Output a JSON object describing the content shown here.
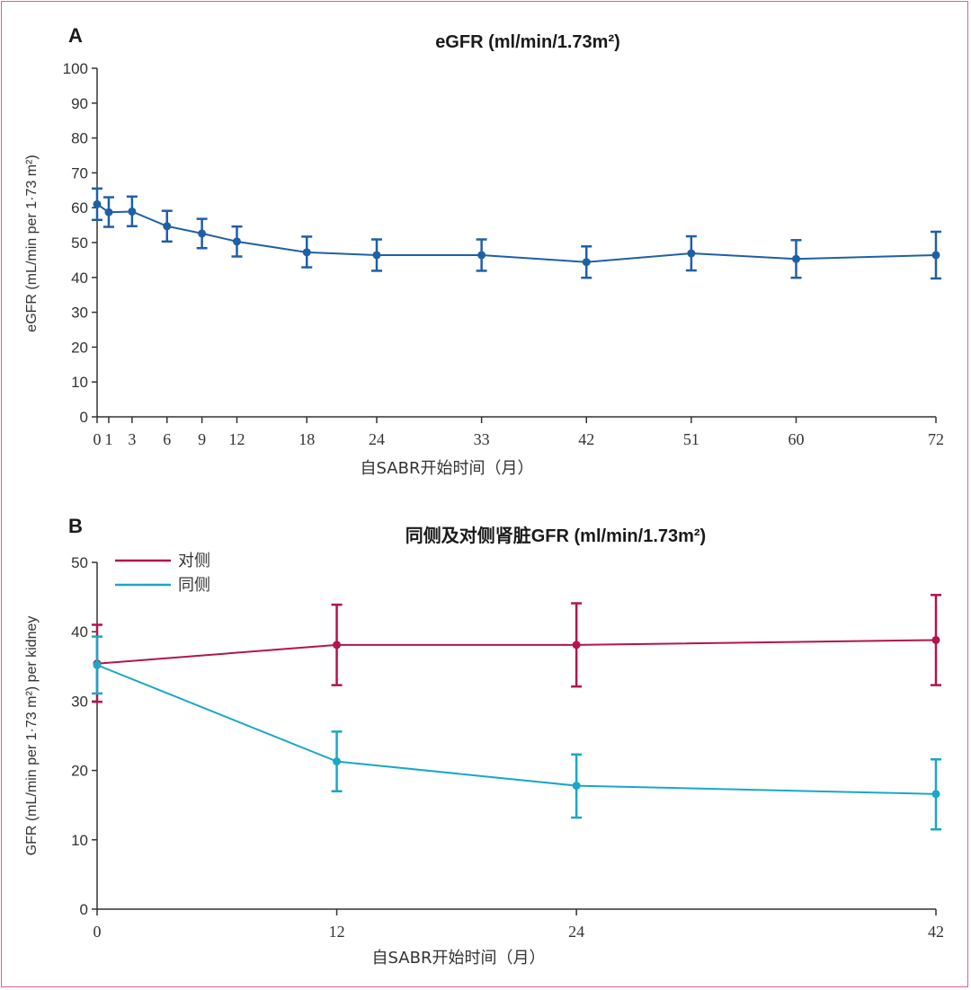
{
  "chart_data": [
    {
      "panel": "A",
      "type": "line",
      "title": "eGFR (ml/min/1.73m²)",
      "xlabel": "自SABR开始时间（月）",
      "ylabel": "eGFR (mL/min per 1·73 m²)",
      "ylim": [
        0,
        100
      ],
      "yticks": [
        0,
        10,
        20,
        30,
        40,
        50,
        60,
        70,
        80,
        90,
        100
      ],
      "xticks": [
        0,
        1,
        3,
        6,
        9,
        12,
        18,
        24,
        33,
        42,
        51,
        60,
        72
      ],
      "xlim": [
        0,
        72
      ],
      "grid": false,
      "colors": {
        "series": "#1f5fa6"
      },
      "series": [
        {
          "name": "",
          "x": [
            0,
            1,
            3,
            6,
            9,
            12,
            18,
            24,
            33,
            42,
            51,
            60,
            72
          ],
          "y": [
            61,
            58.7,
            58.9,
            54.7,
            52.6,
            50.3,
            47.2,
            46.4,
            46.4,
            44.4,
            46.9,
            45.3,
            46.4
          ],
          "err_low": [
            56.5,
            54.5,
            54.7,
            50.3,
            48.4,
            46.0,
            42.9,
            41.9,
            41.9,
            39.9,
            42.0,
            39.9,
            39.7
          ],
          "err_high": [
            65.5,
            63.0,
            63.2,
            59.1,
            56.8,
            54.6,
            51.7,
            50.9,
            50.9,
            48.9,
            51.8,
            50.7,
            53.1
          ]
        }
      ]
    },
    {
      "panel": "B",
      "type": "line",
      "title": "同侧及对侧肾脏GFR (ml/min/1.73m²)",
      "xlabel": "自SABR开始时间（月）",
      "ylabel": "GFR (mL/min per 1·73 m²) per kidney",
      "ylim": [
        0,
        50
      ],
      "yticks": [
        0,
        10,
        20,
        30,
        40,
        50
      ],
      "xticks": [
        0,
        12,
        24,
        42
      ],
      "xlim": [
        0,
        42
      ],
      "grid": false,
      "legend_position": "top-left",
      "colors": {
        "contralateral": "#b3144d",
        "ipsilateral": "#1aa7c8"
      },
      "series": [
        {
          "name": "对侧",
          "x": [
            0,
            12,
            24,
            42
          ],
          "y": [
            35.4,
            38.1,
            38.1,
            38.8
          ],
          "err_low": [
            29.9,
            32.3,
            32.1,
            32.3
          ],
          "err_high": [
            41.0,
            43.9,
            44.1,
            45.3
          ]
        },
        {
          "name": "同侧",
          "x": [
            0,
            12,
            24,
            42
          ],
          "y": [
            35.2,
            21.3,
            17.8,
            16.6
          ],
          "err_low": [
            31.1,
            17.0,
            13.2,
            11.5
          ],
          "err_high": [
            39.3,
            25.6,
            22.3,
            21.6
          ]
        }
      ]
    }
  ]
}
